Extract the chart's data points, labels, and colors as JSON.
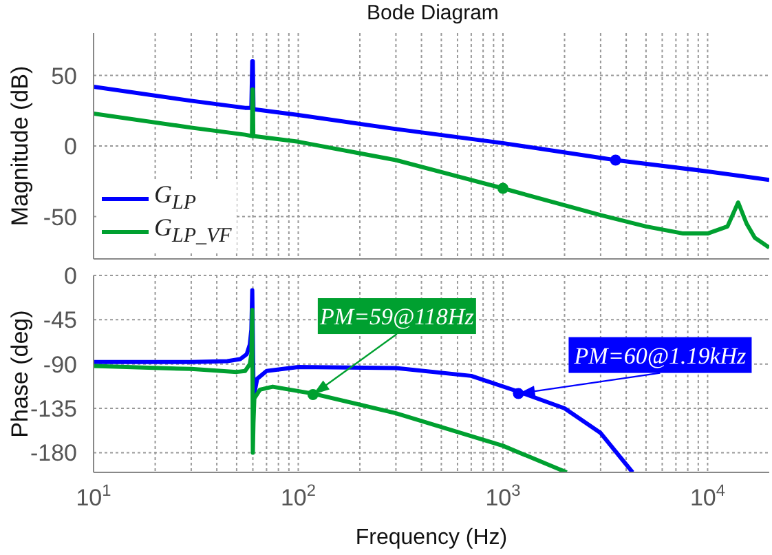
{
  "chart_data": [
    {
      "type": "line",
      "title": "Bode Diagram",
      "ylabel": "Magnitude (dB)",
      "log": "x",
      "grid": true,
      "legend": "bottom left",
      "tick_labels": "y",
      "xlim": [
        10,
        20000
      ],
      "xticks": [
        {
          "value": 10,
          "label": null
        },
        {
          "value": 20,
          "label": null
        },
        {
          "value": 30,
          "label": null
        },
        {
          "value": 40,
          "label": null
        },
        {
          "value": 50,
          "label": null
        },
        {
          "value": 60,
          "label": null
        },
        {
          "value": 70,
          "label": null
        },
        {
          "value": 80,
          "label": null
        },
        {
          "value": 90,
          "label": null
        },
        {
          "value": 100,
          "label": null
        },
        {
          "value": 200,
          "label": null
        },
        {
          "value": 300,
          "label": null
        },
        {
          "value": 400,
          "label": null
        },
        {
          "value": 500,
          "label": null
        },
        {
          "value": 600,
          "label": null
        },
        {
          "value": 700,
          "label": null
        },
        {
          "value": 800,
          "label": null
        },
        {
          "value": 900,
          "label": null
        },
        {
          "value": 1000,
          "label": null
        },
        {
          "value": 2000,
          "label": null
        },
        {
          "value": 3000,
          "label": null
        },
        {
          "value": 4000,
          "label": null
        },
        {
          "value": 5000,
          "label": null
        },
        {
          "value": 6000,
          "label": null
        },
        {
          "value": 7000,
          "label": null
        },
        {
          "value": 8000,
          "label": null
        },
        {
          "value": 9000,
          "label": null
        },
        {
          "value": 10000,
          "label": null
        }
      ],
      "ylim": [
        -80,
        80
      ],
      "yticks": [
        -50,
        0,
        50
      ],
      "series": [
        {
          "name": "G$_{LP}$",
          "color": "#0000ff",
          "x": [
            10,
            30,
            55,
            59,
            59.6,
            60,
            60.4,
            61,
            100,
            300,
            1000,
            3550,
            10000,
            20000
          ],
          "values": [
            42,
            32,
            27,
            27,
            60,
            60,
            27,
            26,
            22,
            12,
            2,
            -10,
            -18,
            -24
          ]
        },
        {
          "name": "G$_{LP_VF}$",
          "color": "#00a030",
          "x": [
            10,
            30,
            55,
            59.4,
            59.7,
            60,
            60.3,
            61,
            100,
            300,
            1000,
            3000,
            5000,
            7600,
            10000,
            12500,
            14100,
            15500,
            17000,
            20000
          ],
          "values": [
            23,
            13,
            8,
            7,
            40,
            40,
            7,
            7,
            3,
            -10,
            -30,
            -49,
            -57,
            -62,
            -62,
            -57,
            -40,
            -55,
            -65,
            -72
          ]
        },
        {
          "type": "scatter",
          "color": "#0000ff",
          "x": [
            3550
          ],
          "values": [
            -10
          ]
        },
        {
          "type": "scatter",
          "color": "#00a030",
          "x": [
            1000
          ],
          "values": [
            -30
          ]
        }
      ]
    },
    {
      "type": "line",
      "xlabel": "Frequency  (Hz)",
      "ylabel": "Phase (deg)",
      "log": "x",
      "grid": true,
      "xlim": [
        10,
        20000
      ],
      "xticks": [
        {
          "value": 10,
          "label": "10$^{1}$"
        },
        {
          "value": 20,
          "label": null
        },
        {
          "value": 30,
          "label": null
        },
        {
          "value": 40,
          "label": null
        },
        {
          "value": 50,
          "label": null
        },
        {
          "value": 60,
          "label": null
        },
        {
          "value": 70,
          "label": null
        },
        {
          "value": 80,
          "label": null
        },
        {
          "value": 90,
          "label": null
        },
        {
          "value": 100,
          "label": "10$^{2}$"
        },
        {
          "value": 200,
          "label": null
        },
        {
          "value": 300,
          "label": null
        },
        {
          "value": 400,
          "label": null
        },
        {
          "value": 500,
          "label": null
        },
        {
          "value": 600,
          "label": null
        },
        {
          "value": 700,
          "label": null
        },
        {
          "value": 800,
          "label": null
        },
        {
          "value": 900,
          "label": null
        },
        {
          "value": 1000,
          "label": "10$^{3}$"
        },
        {
          "value": 2000,
          "label": null
        },
        {
          "value": 3000,
          "label": null
        },
        {
          "value": 4000,
          "label": null
        },
        {
          "value": 5000,
          "label": null
        },
        {
          "value": 6000,
          "label": null
        },
        {
          "value": 7000,
          "label": null
        },
        {
          "value": 8000,
          "label": null
        },
        {
          "value": 9000,
          "label": null
        },
        {
          "value": 10000,
          "label": "10$^{4}$"
        }
      ],
      "ylim": [
        -200,
        0
      ],
      "yticks": [
        -180,
        -135,
        -90,
        -45,
        0
      ],
      "series": [
        {
          "color": "#0000ff",
          "x": [
            10,
            30,
            45,
            52,
            56,
            58,
            59,
            59.6,
            60,
            60.5,
            61,
            63,
            70,
            100,
            300,
            700,
            1190,
            2000,
            3000,
            4300
          ],
          "values": [
            -88,
            -88,
            -87,
            -85,
            -80,
            -70,
            -55,
            -15,
            -60,
            -125,
            -120,
            -105,
            -97,
            -93,
            -94,
            -102,
            -118,
            -135,
            -160,
            -200
          ]
        },
        {
          "color": "#00a030",
          "x": [
            10,
            30,
            50,
            55,
            58,
            59,
            59.6,
            60,
            60.4,
            61,
            65,
            75,
            118,
            300,
            1000,
            2050
          ],
          "values": [
            -92,
            -95,
            -98,
            -97,
            -90,
            -80,
            -35,
            -180,
            -150,
            -125,
            -116,
            -113,
            -120,
            -140,
            -173,
            -200
          ]
        },
        {
          "type": "scatter",
          "color": "#0000ff",
          "x": [
            1190
          ],
          "values": [
            -120
          ]
        },
        {
          "type": "scatter",
          "color": "#00a030",
          "x": [
            118
          ],
          "values": [
            -121
          ]
        }
      ],
      "annotations": [
        {
          "text": "PM=59@118Hz",
          "x": 118,
          "y": -121
        },
        {
          "text": "PM=60@1.19kHz",
          "x": 1190,
          "y": -120
        }
      ]
    }
  ]
}
